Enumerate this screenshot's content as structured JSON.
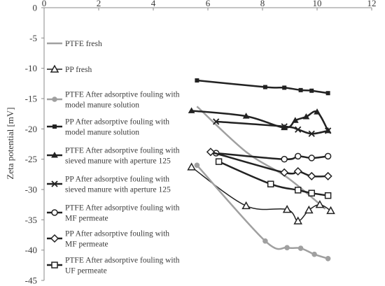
{
  "chart_data": {
    "type": "line",
    "title": "",
    "xlabel": "",
    "ylabel": "Zeta potential [mV]",
    "xlim": [
      0,
      12
    ],
    "ylim": [
      -45,
      0
    ],
    "xticks": [
      0,
      2,
      4,
      6,
      8,
      10,
      12
    ],
    "yticks": [
      0,
      -5,
      -10,
      -15,
      -20,
      -25,
      -30,
      -35,
      -40,
      -45
    ],
    "grid": false,
    "legend_position": "left",
    "series": [
      {
        "name": "PTFE fresh",
        "color": "#a0a0a0",
        "marker": "none",
        "line_width": 2.5,
        "x": [
          5.6,
          7.4,
          8.9,
          10.3
        ],
        "y": [
          -16.3,
          -23.8,
          -28.0,
          -33.2
        ]
      },
      {
        "name": "PP fresh",
        "color": "#222222",
        "marker": "triangle-open",
        "line_width": 1.5,
        "x": [
          5.4,
          7.4,
          8.9,
          9.3,
          9.7,
          10.1,
          10.5
        ],
        "y": [
          -26.3,
          -32.7,
          -33.3,
          -35.2,
          -33.4,
          -32.5,
          -33.5
        ]
      },
      {
        "name": "PTFE After adsorptive fouling with\nmodel manure solution",
        "color": "#a0a0a0",
        "marker": "circle-filled",
        "line_width": 2.5,
        "x": [
          5.6,
          8.1,
          8.9,
          9.4,
          9.9,
          10.4
        ],
        "y": [
          -26.0,
          -38.5,
          -39.6,
          -39.7,
          -40.7,
          -41.4
        ]
      },
      {
        "name": "PP After adsorptive fouling with\nmodel manure solution",
        "color": "#222222",
        "marker": "square-filled",
        "line_width": 2.5,
        "x": [
          5.6,
          8.1,
          8.8,
          9.4,
          9.8,
          10.4
        ],
        "y": [
          -12.0,
          -13.1,
          -13.2,
          -13.6,
          -13.7,
          -14.1
        ]
      },
      {
        "name": "PTFE After adsorptive fouling with\nsieved manure with aperture 125",
        "color": "#222222",
        "marker": "triangle-filled",
        "line_width": 2.5,
        "x": [
          5.4,
          7.4,
          8.8,
          9.2,
          9.6,
          10.0,
          10.4
        ],
        "y": [
          -17.0,
          -17.9,
          -19.8,
          -18.6,
          -18.0,
          -17.2,
          -20.3
        ]
      },
      {
        "name": "PP After adsorptive fouling with\nsieved manure with aperture 125",
        "color": "#222222",
        "marker": "x",
        "line_width": 2.5,
        "x": [
          6.3,
          8.8,
          9.3,
          9.8,
          10.4
        ],
        "y": [
          -18.8,
          -19.6,
          -20.1,
          -20.8,
          -20.3
        ]
      },
      {
        "name": "PTFE After adsorptive fouling with\nMF permeate",
        "color": "#222222",
        "marker": "circle-open",
        "line_width": 2.5,
        "x": [
          6.3,
          8.8,
          9.3,
          9.8,
          10.4
        ],
        "y": [
          -24.0,
          -25.0,
          -24.5,
          -24.8,
          -24.5
        ]
      },
      {
        "name": "PP After adsorptive fouling with\nMF permeate",
        "color": "#222222",
        "marker": "diamond-open",
        "line_width": 2.5,
        "x": [
          6.1,
          8.8,
          9.3,
          9.8,
          10.4
        ],
        "y": [
          -23.8,
          -27.2,
          -27.0,
          -27.8,
          -27.8
        ]
      },
      {
        "name": "PTFE After adsorptive fouling with\nUF permeate",
        "color": "#222222",
        "marker": "square-open",
        "line_width": 2.5,
        "x": [
          6.4,
          8.3,
          9.3,
          9.8,
          10.4
        ],
        "y": [
          -25.4,
          -29.1,
          -30.1,
          -30.6,
          -31.0
        ]
      }
    ]
  }
}
